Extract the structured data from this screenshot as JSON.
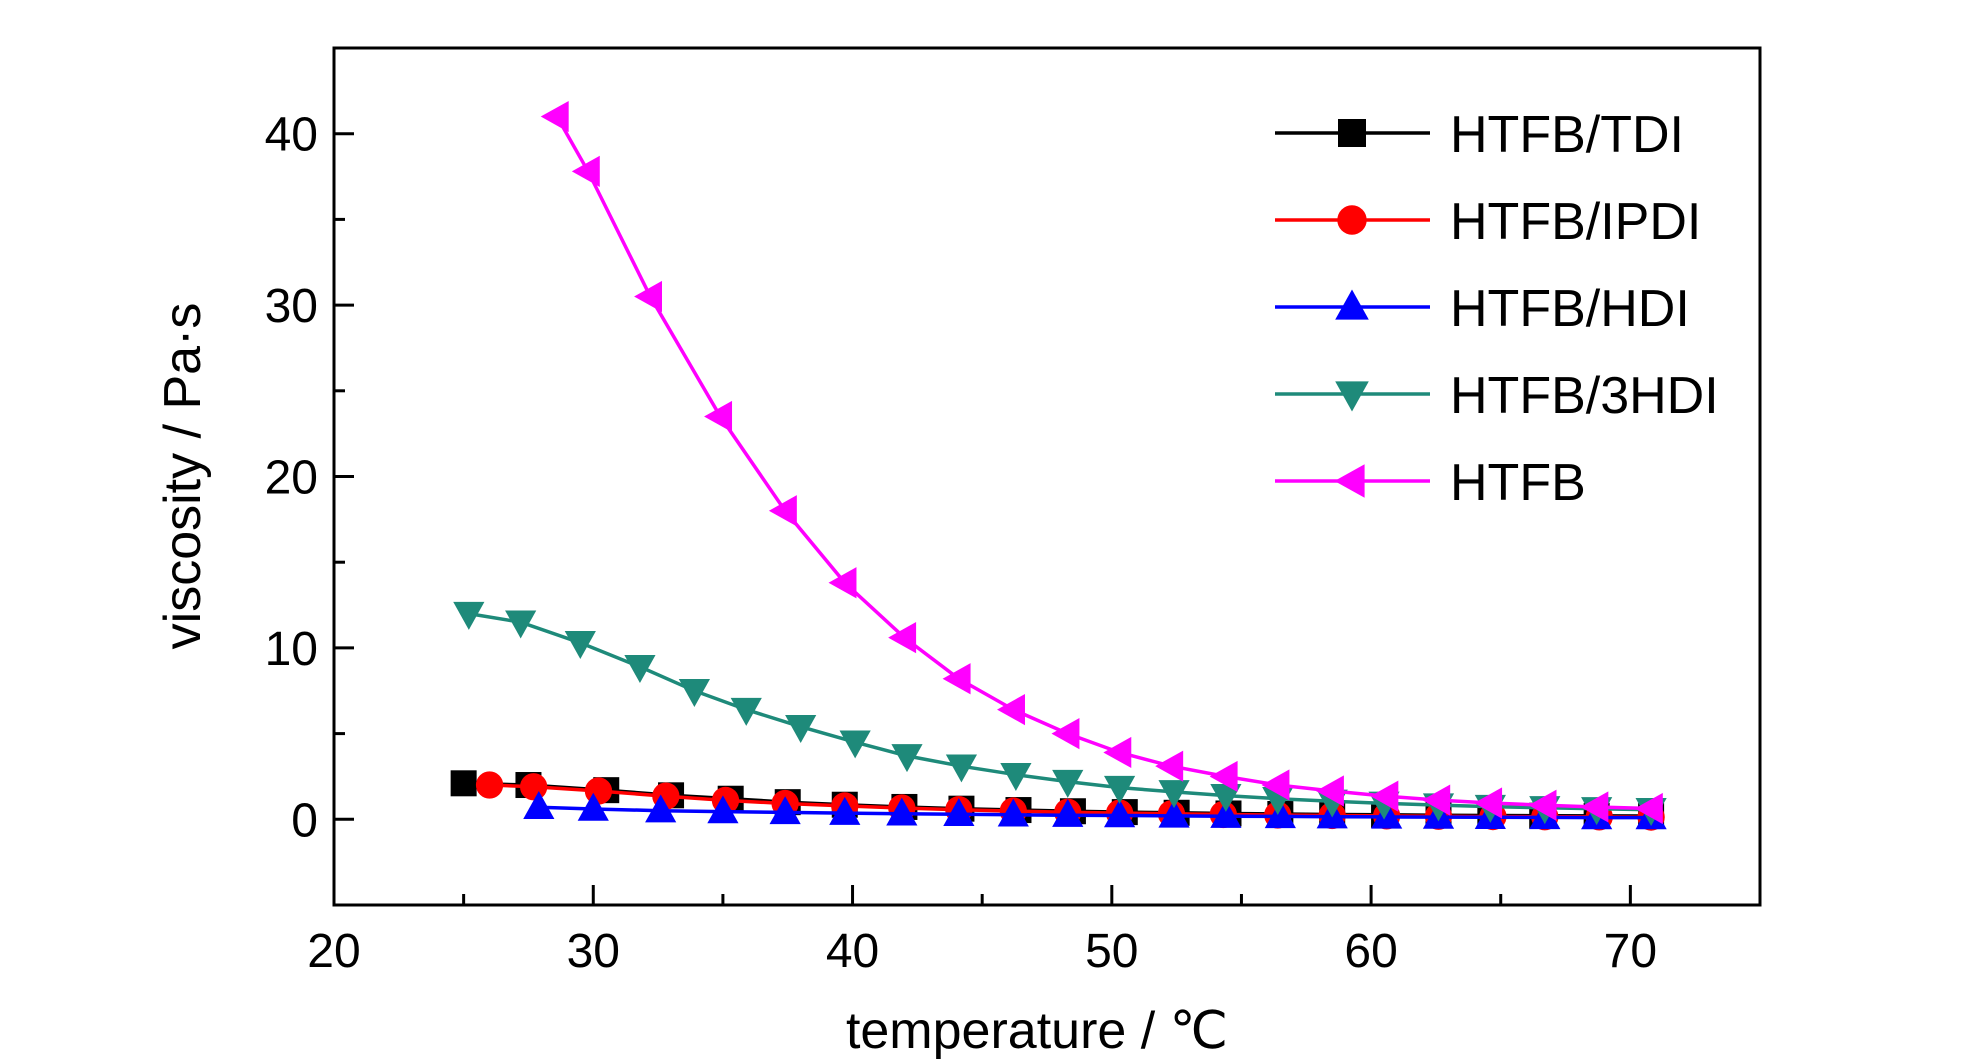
{
  "chart_data": {
    "type": "line",
    "title": "",
    "xlabel": "temperature / ℃",
    "ylabel": "viscosity / Pa·s",
    "xlim": [
      20,
      75
    ],
    "ylim": [
      -5,
      45
    ],
    "xticks": [
      20,
      30,
      40,
      50,
      60,
      70
    ],
    "yticks": [
      0,
      10,
      20,
      30,
      40
    ],
    "grid": false,
    "legend_position": "top-right",
    "series": [
      {
        "name": "HTFB/TDI",
        "color": "#000000",
        "marker": "square",
        "x": [
          25,
          27.5,
          30.5,
          33,
          35.3,
          37.5,
          39.7,
          42,
          44.2,
          46.4,
          48.5,
          50.5,
          52.5,
          54.5,
          56.5,
          58.5,
          60.5,
          62.6,
          64.6,
          66.6,
          68.7,
          70.8
        ],
        "y": [
          2.1,
          2.0,
          1.7,
          1.4,
          1.2,
          1.0,
          0.85,
          0.72,
          0.62,
          0.54,
          0.47,
          0.42,
          0.38,
          0.34,
          0.31,
          0.28,
          0.26,
          0.24,
          0.22,
          0.21,
          0.2,
          0.19
        ]
      },
      {
        "name": "HTFB/IPDI",
        "color": "#ff0000",
        "marker": "circle",
        "x": [
          26,
          27.7,
          30.2,
          32.8,
          35.1,
          37.4,
          39.7,
          41.9,
          44.1,
          46.2,
          48.3,
          50.3,
          52.3,
          54.3,
          56.4,
          58.5,
          60.6,
          62.6,
          64.7,
          66.7,
          68.8,
          70.8
        ],
        "y": [
          2.0,
          1.9,
          1.65,
          1.35,
          1.1,
          0.92,
          0.78,
          0.66,
          0.56,
          0.48,
          0.41,
          0.36,
          0.32,
          0.28,
          0.25,
          0.22,
          0.2,
          0.18,
          0.16,
          0.15,
          0.14,
          0.13
        ]
      },
      {
        "name": "HTFB/HDI",
        "color": "#0000ff",
        "marker": "triangle-up",
        "x": [
          27.9,
          30.0,
          32.6,
          35.0,
          37.4,
          39.7,
          41.9,
          44.1,
          46.2,
          48.3,
          50.3,
          52.4,
          54.4,
          56.5,
          58.5,
          60.6,
          62.6,
          64.6,
          66.7,
          68.7,
          70.8
        ],
        "y": [
          0.7,
          0.6,
          0.5,
          0.45,
          0.4,
          0.36,
          0.32,
          0.29,
          0.26,
          0.24,
          0.22,
          0.2,
          0.18,
          0.17,
          0.15,
          0.14,
          0.13,
          0.12,
          0.11,
          0.1,
          0.1
        ]
      },
      {
        "name": "HTFB/3HDI",
        "color": "#1e8a7a",
        "marker": "triangle-down",
        "x": [
          25.2,
          27.2,
          29.5,
          31.8,
          33.9,
          35.9,
          38.0,
          40.1,
          42.1,
          44.2,
          46.3,
          48.3,
          50.3,
          52.4,
          54.4,
          56.4,
          58.5,
          60.5,
          62.6,
          64.6,
          66.7,
          68.7,
          70.8
        ],
        "y": [
          12.0,
          11.5,
          10.3,
          8.9,
          7.5,
          6.4,
          5.4,
          4.5,
          3.7,
          3.1,
          2.6,
          2.2,
          1.85,
          1.6,
          1.38,
          1.2,
          1.05,
          0.93,
          0.83,
          0.74,
          0.67,
          0.61,
          0.56
        ]
      },
      {
        "name": "HTFB",
        "color": "#ff00ff",
        "marker": "triangle-left",
        "x": [
          28.6,
          29.8,
          32.2,
          34.9,
          37.4,
          39.7,
          42.0,
          44.1,
          46.2,
          48.3,
          50.3,
          52.3,
          54.4,
          56.4,
          58.5,
          60.6,
          62.6,
          64.6,
          66.7,
          68.7,
          70.8
        ],
        "y": [
          41.0,
          37.8,
          30.5,
          23.5,
          18.0,
          13.8,
          10.6,
          8.2,
          6.4,
          5.0,
          3.9,
          3.1,
          2.5,
          2.0,
          1.65,
          1.35,
          1.12,
          0.95,
          0.82,
          0.72,
          0.63
        ]
      }
    ]
  }
}
